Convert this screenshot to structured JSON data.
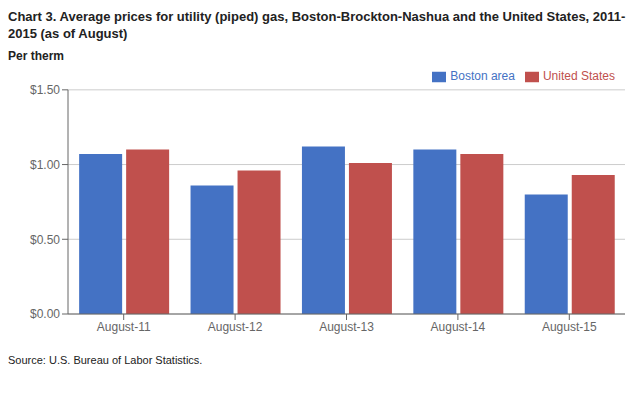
{
  "chart_data": {
    "type": "bar",
    "title": "Chart 3. Average prices for utility (piped) gas, Boston-Brockton-Nashua and the United States, 2011-2015 (as of August)",
    "y_label": "Per therm",
    "annotations": [
      "Source: U.S. Bureau of Labor Statistics."
    ],
    "categories": [
      "August-11",
      "August-12",
      "August-13",
      "August-14",
      "August-15"
    ],
    "series": [
      {
        "name": "Boston area",
        "color": "#4472C4",
        "values": [
          1.07,
          0.86,
          1.12,
          1.1,
          0.8
        ]
      },
      {
        "name": "United States",
        "color": "#C0504D",
        "values": [
          1.1,
          0.96,
          1.01,
          1.07,
          0.93
        ]
      }
    ],
    "ylim": [
      0.0,
      1.5
    ],
    "yticks": [
      {
        "value": 0.0,
        "label": "$0.00"
      },
      {
        "value": 0.5,
        "label": "$0.50"
      },
      {
        "value": 1.0,
        "label": "$1.00"
      },
      {
        "value": 1.5,
        "label": "$1.50"
      }
    ],
    "grid": true,
    "legend": "upper right"
  }
}
